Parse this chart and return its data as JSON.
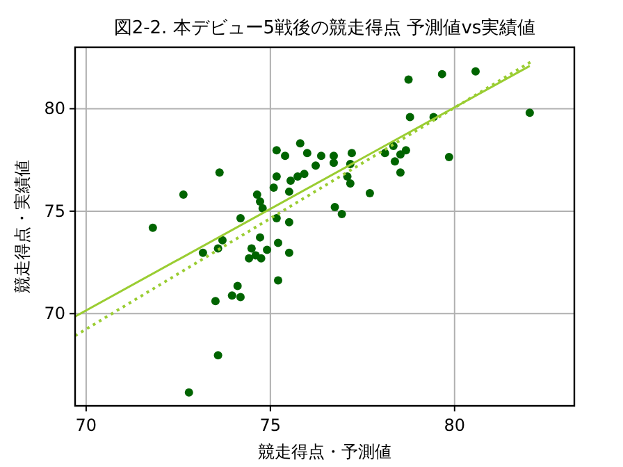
{
  "chart_data": {
    "type": "scatter",
    "title": "図2-2. 本デビュー5戦後の競走得点 予測値vs実績値",
    "xlabel": "競走得点・予測値",
    "ylabel": "競走得点・実績値",
    "xlim": [
      69.7,
      83.25
    ],
    "ylim": [
      65.5,
      83
    ],
    "xticks": [
      70,
      75,
      80
    ],
    "yticks": [
      70,
      75,
      80
    ],
    "grid": true,
    "series": [
      {
        "color": "#006400",
        "marker": "circle",
        "x": [
          71.81,
          72.64,
          72.79,
          73.17,
          73.51,
          73.58,
          73.58,
          73.62,
          73.7,
          73.96,
          74.11,
          74.19,
          74.19,
          74.42,
          74.49,
          74.6,
          74.64,
          74.72,
          74.72,
          74.75,
          74.79,
          74.91,
          75.09,
          75.17,
          75.17,
          75.17,
          75.21,
          75.21,
          75.4,
          75.51,
          75.51,
          75.51,
          75.55,
          75.74,
          75.81,
          75.92,
          76.0,
          76.23,
          76.38,
          76.72,
          76.72,
          76.75,
          76.94,
          77.09,
          77.17,
          77.17,
          77.21,
          77.7,
          78.11,
          78.34,
          78.38,
          78.53,
          78.53,
          78.68,
          78.75,
          78.79,
          79.43,
          79.66,
          79.85,
          80.57,
          82.04
        ],
        "values": [
          74.19,
          75.81,
          66.15,
          72.97,
          70.61,
          67.97,
          73.18,
          76.89,
          73.58,
          70.88,
          71.35,
          70.81,
          74.66,
          72.7,
          73.18,
          72.84,
          75.81,
          75.47,
          73.72,
          72.7,
          75.14,
          73.11,
          76.15,
          77.97,
          76.69,
          74.66,
          73.45,
          71.62,
          77.7,
          75.95,
          74.46,
          72.97,
          76.49,
          76.69,
          78.31,
          76.82,
          77.84,
          77.23,
          77.7,
          77.7,
          77.36,
          75.2,
          74.86,
          76.69,
          77.3,
          76.35,
          77.84,
          75.88,
          77.84,
          78.18,
          77.43,
          77.77,
          76.89,
          77.97,
          81.42,
          79.59,
          79.59,
          81.69,
          77.64,
          81.82,
          79.8
        ]
      },
      {
        "type": "line",
        "color": "#9acd32",
        "line_style": "solid",
        "marker": "none",
        "x": [
          69.7,
          82.04
        ],
        "values": [
          69.86,
          82.09
        ]
      },
      {
        "type": "line",
        "color": "#9acd32",
        "line_style": "dotted",
        "marker": "none",
        "x": [
          69.7,
          82.08
        ],
        "values": [
          68.92,
          82.3
        ]
      }
    ]
  }
}
